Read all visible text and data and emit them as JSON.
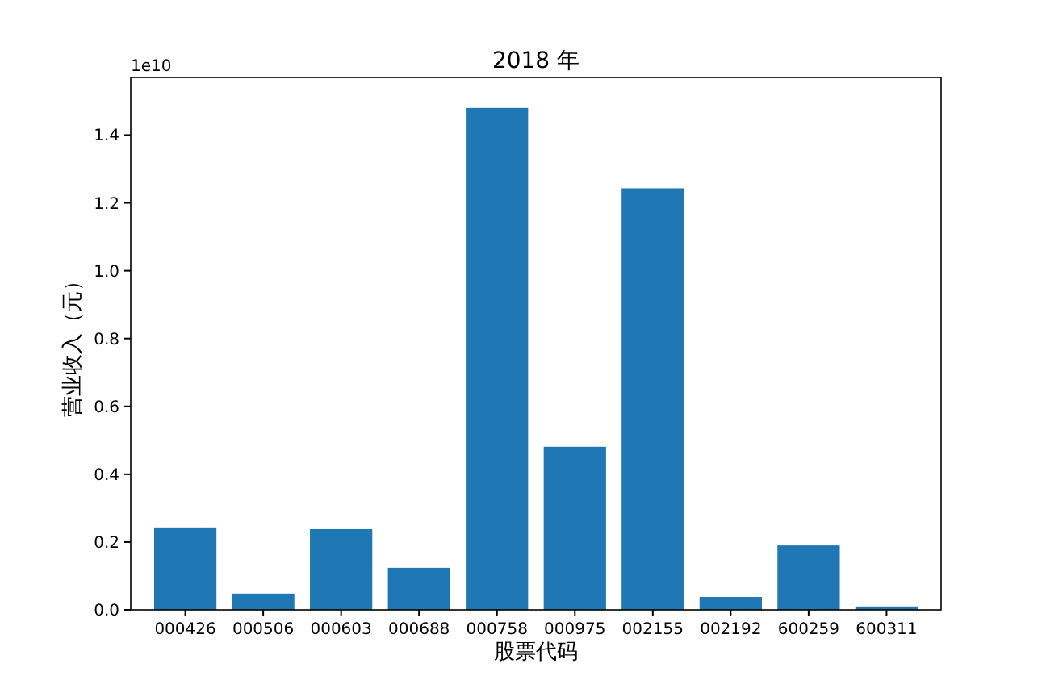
{
  "chart_data": {
    "type": "bar",
    "title": "2018 年",
    "xlabel": "股票代码",
    "ylabel": "营业收入（元）",
    "annotations": [
      "1e10"
    ],
    "categories": [
      "000426",
      "000506",
      "000603",
      "000688",
      "000758",
      "000975",
      "002155",
      "002192",
      "600259",
      "600311"
    ],
    "values": [
      0.243,
      0.048,
      0.238,
      0.124,
      1.48,
      0.481,
      1.243,
      0.038,
      0.19,
      0.01
    ],
    "color": "#1f77b4",
    "ylim": [
      0,
      1.57
    ],
    "yticks": [
      {
        "value": 0,
        "label": "0.0"
      },
      {
        "value": 0.2,
        "label": "0.2"
      },
      {
        "value": 0.4,
        "label": "0.4"
      },
      {
        "value": 0.6,
        "label": "0.6"
      },
      {
        "value": 0.8,
        "label": "0.8"
      },
      {
        "value": 1.0,
        "label": "1.0"
      },
      {
        "value": 1.2,
        "label": "1.2"
      },
      {
        "value": 1.4,
        "label": "1.4"
      }
    ]
  }
}
